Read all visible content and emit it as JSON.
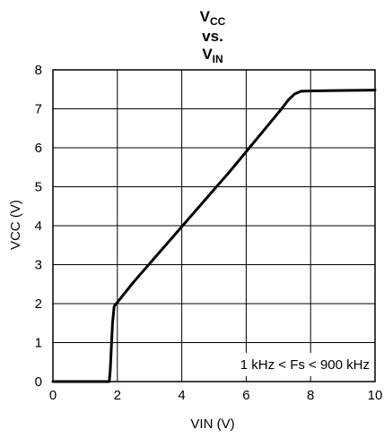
{
  "chart_data": {
    "type": "line",
    "title": {
      "line1_main": "V",
      "line1_sub": "CC",
      "line2": "vs.",
      "line3_main": "V",
      "line3_sub": "IN"
    },
    "xlabel": "VIN (V)",
    "ylabel": "VCC (V)",
    "xlim": [
      0,
      10
    ],
    "ylim": [
      0,
      8
    ],
    "xticks": [
      "0",
      "2",
      "4",
      "6",
      "8",
      "10"
    ],
    "yticks": [
      "0",
      "1",
      "2",
      "3",
      "4",
      "5",
      "6",
      "7",
      "8"
    ],
    "grid": true,
    "annotation": "1 kHz < Fs < 900 kHz",
    "series": [
      {
        "x": [
          0,
          1.75,
          1.78,
          1.85,
          1.9,
          2.5,
          3.5,
          4.5,
          5.5,
          6.5,
          7.1,
          7.3,
          7.5,
          7.7,
          8.0,
          9.0,
          10.0
        ],
        "y": [
          0,
          0,
          0.3,
          1.5,
          1.93,
          2.55,
          3.5,
          4.45,
          5.4,
          6.4,
          7.0,
          7.22,
          7.38,
          7.45,
          7.46,
          7.47,
          7.48
        ]
      }
    ]
  }
}
